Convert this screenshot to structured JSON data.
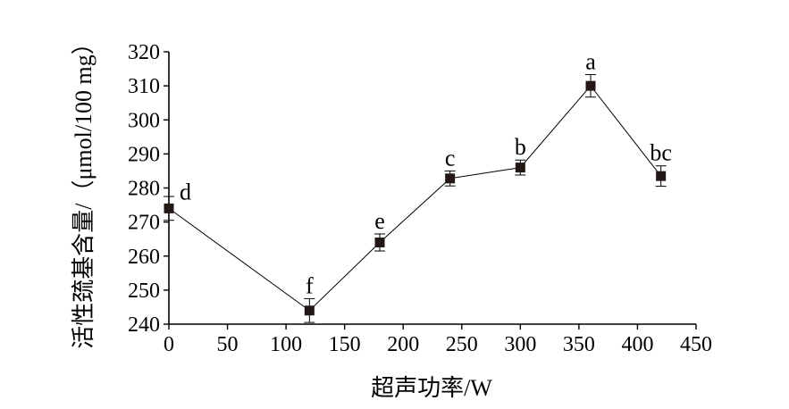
{
  "chart_data": {
    "type": "line",
    "title": "",
    "xlabel": "超声功率/W",
    "ylabel": "活性巯基含量/（μmol/100 mg）",
    "xlim": [
      0,
      450
    ],
    "ylim": [
      240,
      320
    ],
    "x_ticks": [
      "0",
      "50",
      "100",
      "150",
      "200",
      "250",
      "300",
      "350",
      "400",
      "450"
    ],
    "y_ticks": [
      "240",
      "250",
      "260",
      "270",
      "280",
      "290",
      "300",
      "310",
      "320"
    ],
    "grid": false,
    "legend": "none",
    "marker": "square",
    "series": [
      {
        "x": [
          0,
          120,
          180,
          240,
          300,
          360,
          420
        ],
        "y": [
          274,
          244,
          264,
          282.8,
          286,
          310,
          283.5
        ],
        "error": [
          3.5,
          3.5,
          2.5,
          2.2,
          2.2,
          3.3,
          3.0
        ],
        "labels": [
          "d",
          "f",
          "e",
          "c",
          "b",
          "a",
          "bc"
        ]
      }
    ]
  }
}
